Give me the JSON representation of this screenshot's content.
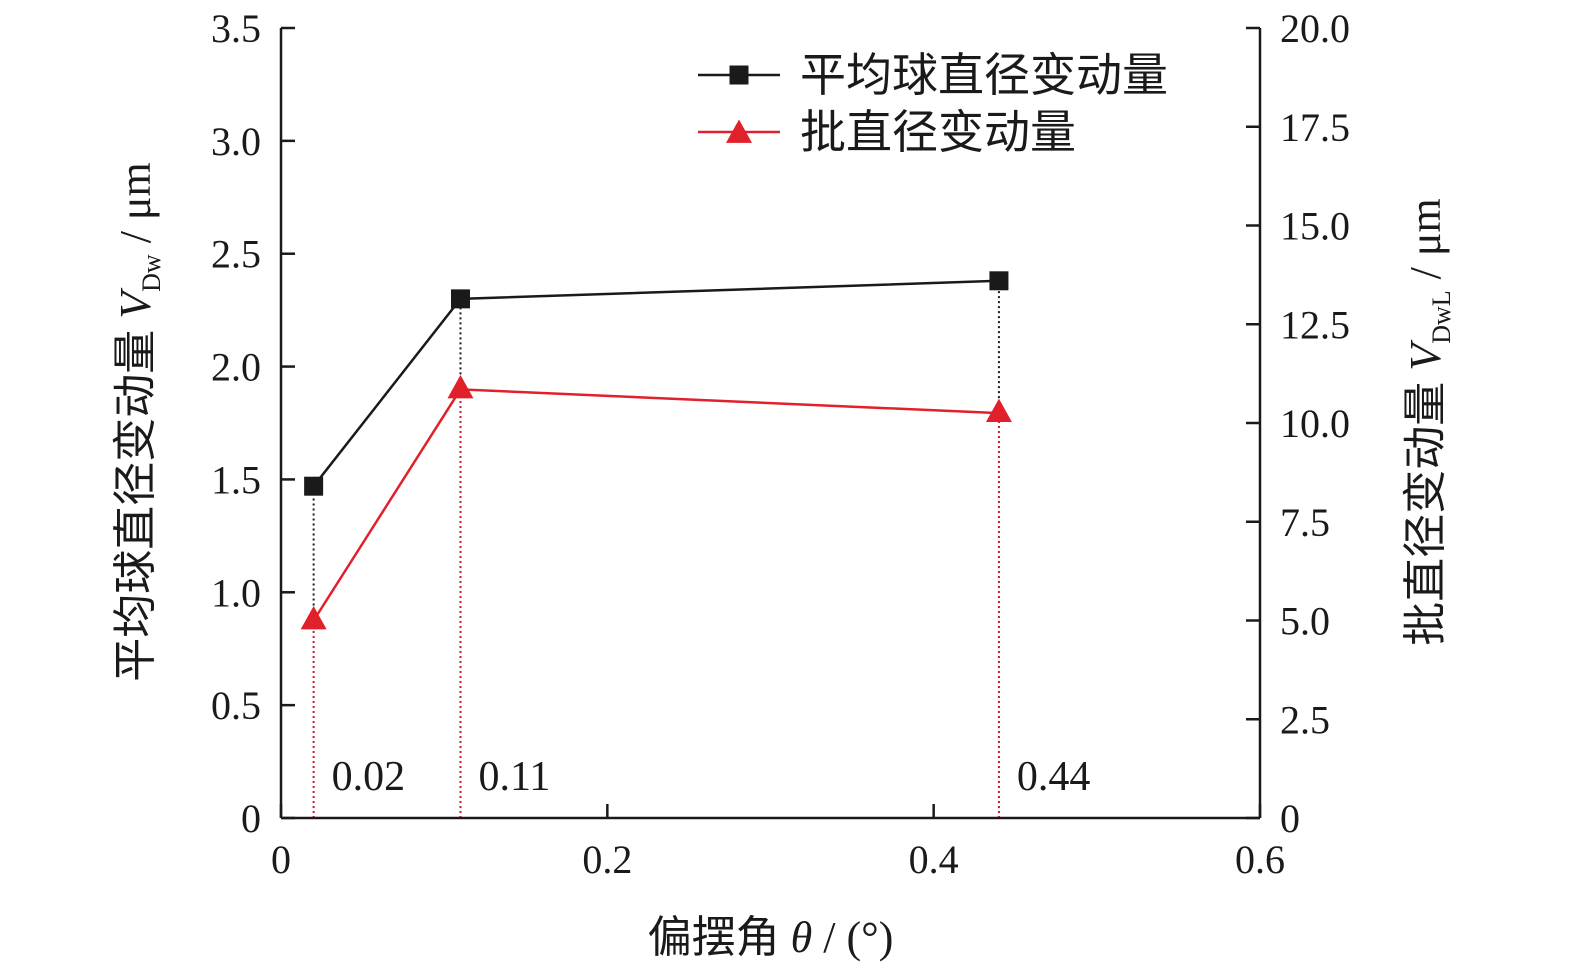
{
  "chart_data": {
    "type": "line",
    "x": [
      0.02,
      0.11,
      0.44
    ],
    "xlim": [
      0,
      0.6
    ],
    "x_ticks": [
      "0",
      "0.2",
      "0.4",
      "0.6"
    ],
    "x_tick_values": [
      0,
      0.2,
      0.4,
      0.6
    ],
    "xlabel": {
      "main": "偏摆角 ",
      "symbol": "θ",
      "unit": " / (°)"
    },
    "y_left": {
      "label": {
        "main": "平均球直径变动量 ",
        "symbol": "V",
        "sub": "Dw",
        "unit": " / μm"
      },
      "lim": [
        0,
        3.5
      ],
      "ticks": [
        "0",
        "0.5",
        "1.0",
        "1.5",
        "2.0",
        "2.5",
        "3.0",
        "3.5"
      ],
      "tick_values": [
        0,
        0.5,
        1.0,
        1.5,
        2.0,
        2.5,
        3.0,
        3.5
      ]
    },
    "y_right": {
      "label": {
        "main": "批直径变动量 ",
        "symbol": "V",
        "sub": "DwL",
        "unit": " / μm"
      },
      "lim": [
        0,
        20
      ],
      "ticks": [
        "0",
        "2.5",
        "5.0",
        "7.5",
        "10.0",
        "12.5",
        "15.0",
        "17.5",
        "20.0"
      ],
      "tick_values": [
        0,
        2.5,
        5.0,
        7.5,
        10.0,
        12.5,
        15.0,
        17.5,
        20.0
      ]
    },
    "series": [
      {
        "name": "平均球直径变动量",
        "axis": "left",
        "marker": "square",
        "color": "#1a1a1a",
        "values": [
          1.47,
          2.3,
          2.38
        ]
      },
      {
        "name": "批直径变动量",
        "axis": "right",
        "marker": "triangle",
        "color": "#e0202a",
        "values": [
          5.0,
          10.85,
          10.25
        ]
      }
    ],
    "annotations": [
      {
        "text": "0.02",
        "x": 0.02
      },
      {
        "text": "0.11",
        "x": 0.11
      },
      {
        "text": "0.44",
        "x": 0.44
      }
    ],
    "legend_position": "top-right",
    "grid": false
  }
}
